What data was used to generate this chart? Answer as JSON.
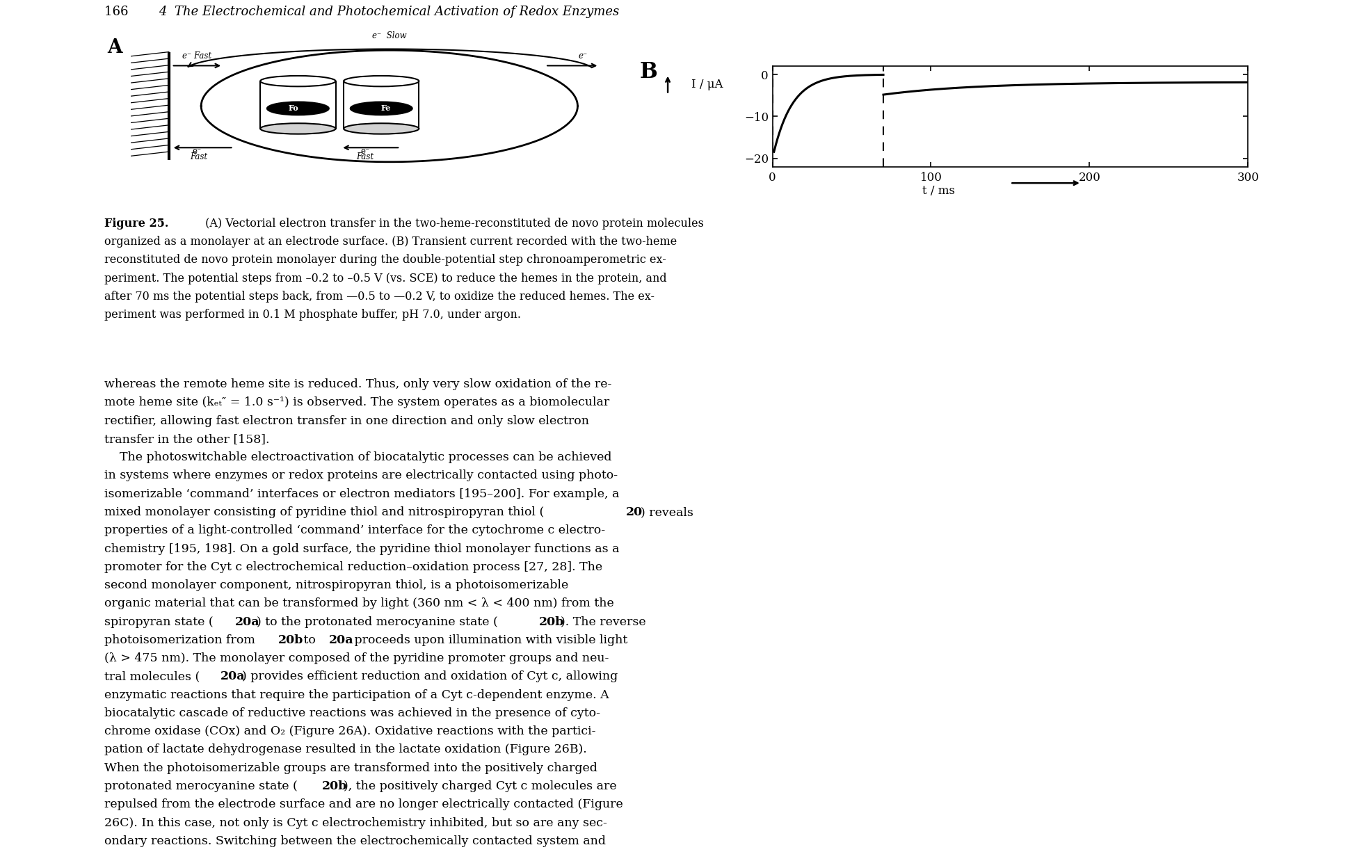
{
  "page_header_num": "166",
  "page_header_title": "4  The Electrochemical and Photochemical Activation of Redox Enzymes",
  "fig_label_A": "A",
  "fig_label_B": "B",
  "graph_B": {
    "xlabel": "t / ms",
    "ylabel": "I / μA",
    "xlim": [
      0,
      300
    ],
    "ylim": [
      -22,
      2
    ],
    "xticks": [
      0,
      100,
      200,
      300
    ],
    "yticks": [
      -20,
      -10,
      0
    ],
    "step_time": 70,
    "reduction_peak": -20,
    "reduction_tau": 12,
    "oxidation_peak": -4.8,
    "oxidation_tau": 60,
    "oxidation_final": -1.8
  },
  "caption_bold": "Figure 25.",
  "caption_lines": [
    " (A) Vectorial electron transfer in the two-heme-reconstituted de novo protein molecules",
    "organized as a monolayer at an electrode surface. (B) Transient current recorded with the two-heme",
    "reconstituted de novo protein monolayer during the double-potential step chronoamperometric ex-",
    "periment. The potential steps from –0.2 to –0.5 V (vs. SCE) to reduce the hemes in the protein, and",
    "after 70 ms the potential steps back, from —0.5 to —0.2 V, to oxidize the reduced hemes. The ex-",
    "periment was performed in 0.1 M phosphate buffer, pH 7.0, under argon."
  ],
  "body_lines": [
    "whereas the remote heme site is reduced. Thus, only very slow oxidation of the re-",
    "mote heme site (kₑₜ″ = 1.0 s⁻¹) is observed. The system operates as a biomolecular",
    "rectifier, allowing fast electron transfer in one direction and only slow electron",
    "transfer in the other [158].",
    "    The photoswitchable electroactivation of biocatalytic processes can be achieved",
    "in systems where enzymes or redox proteins are electrically contacted using photo-",
    "isomerizable ‘command’ interfaces or electron mediators [195–200]. For example, a",
    "mixed monolayer consisting of pyridine thiol and nitrospiropyran thiol (__20__) reveals",
    "properties of a light-controlled ‘command’ interface for the cytochrome c electro-",
    "chemistry [195, 198]. On a gold surface, the pyridine thiol monolayer functions as a",
    "promoter for the Cyt c electrochemical reduction–oxidation process [27, 28]. The",
    "second monolayer component, nitrospiropyran thiol, is a photoisomerizable",
    "organic material that can be transformed by light (360 nm < λ < 400 nm) from the",
    "spiropyran state (__20a__) to the protonated merocyanine state (__20b__). The reverse",
    "photoisomerization from __20b__ to __20a__ proceeds upon illumination with visible light",
    "(λ > 475 nm). The monolayer composed of the pyridine promoter groups and neu-",
    "tral molecules (__20a__) provides efficient reduction and oxidation of Cyt c, allowing",
    "enzymatic reactions that require the participation of a Cyt c-dependent enzyme. A",
    "biocatalytic cascade of reductive reactions was achieved in the presence of cyto-",
    "chrome oxidase (COx) and O₂ (Figure 26A). Oxidative reactions with the partici-",
    "pation of lactate dehydrogenase resulted in the lactate oxidation (Figure 26B).",
    "When the photoisomerizable groups are transformed into the positively charged",
    "protonated merocyanine state (__20b__), the positively charged Cyt c molecules are",
    "repulsed from the electrode surface and are no longer electrically contacted (Figure",
    "26C). In this case, not only is Cyt c electrochemistry inhibited, but so are any sec-",
    "ondary reactions. Switching between the electrochemically contacted system and"
  ],
  "background_color": "#ffffff",
  "text_color": "#000000"
}
